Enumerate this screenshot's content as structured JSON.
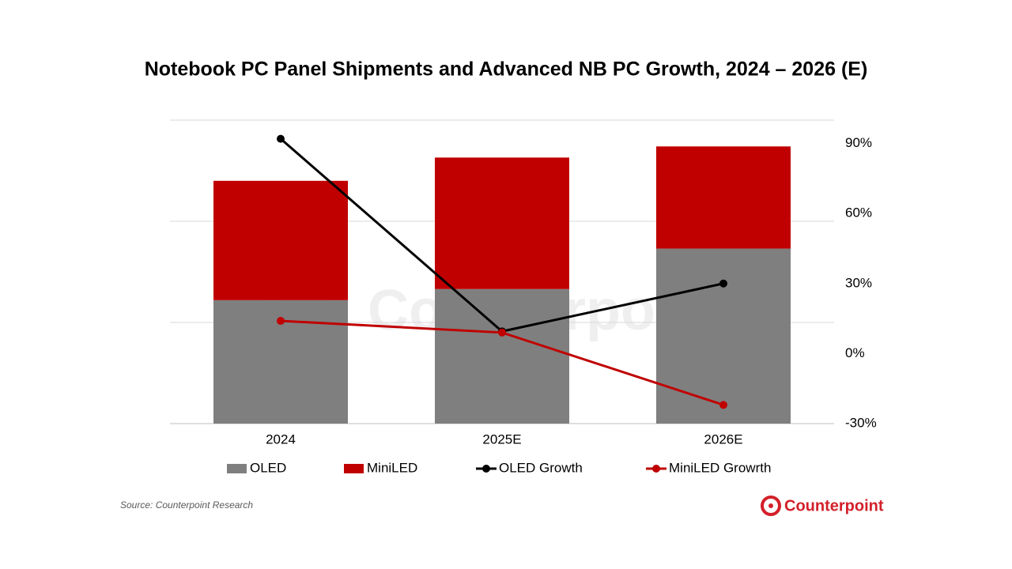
{
  "chart_data": {
    "type": "bar",
    "title": "Notebook PC Panel Shipments and Advanced NB PC Growth, 2024 – 2026 (E)",
    "categories": [
      "2024",
      "2025E",
      "2026E"
    ],
    "series": [
      {
        "name": "OLED",
        "type": "bar",
        "color": "#7f7f7f",
        "values": [
          12.2,
          13.3,
          17.3
        ]
      },
      {
        "name": "MiniLED",
        "type": "bar",
        "color": "#c00000",
        "values": [
          11.8,
          13.0,
          10.1
        ]
      },
      {
        "name": "OLED Growth",
        "type": "line",
        "axis": "y2",
        "color": "#000000",
        "values": [
          92,
          9.5,
          30
        ]
      },
      {
        "name": "MiniLED Growrth",
        "type": "line",
        "axis": "y2",
        "color": "#c00000",
        "values": [
          14,
          9,
          -22
        ]
      }
    ],
    "stacked": true,
    "ylim": [
      0,
      30
    ],
    "yticks": [
      0,
      10,
      20,
      30
    ],
    "grid": true,
    "y2lim": [
      -30,
      100
    ],
    "y2ticks": [
      {
        "value": -30,
        "label": "-30%"
      },
      {
        "value": 0,
        "label": "0%"
      },
      {
        "value": 30,
        "label": "30%"
      },
      {
        "value": 60,
        "label": "60%"
      },
      {
        "value": 90,
        "label": "90%"
      }
    ],
    "legend": "bottom",
    "source": "Source: Counterpoint Research",
    "brand": "Counterpoint"
  }
}
